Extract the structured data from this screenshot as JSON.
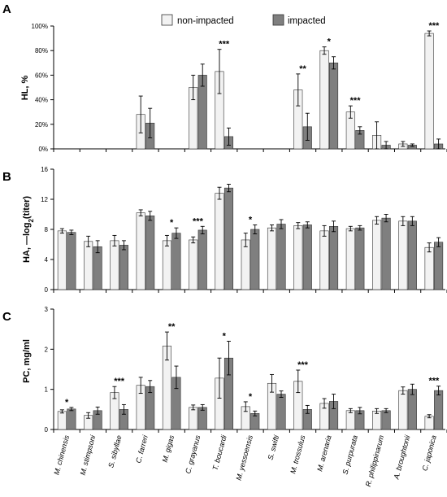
{
  "chart_data": [
    {
      "type": "bar",
      "panel": "A",
      "ylabel": "HL, %",
      "ylim": [
        0,
        100
      ],
      "yticks": [
        "0%",
        "20%",
        "40%",
        "60%",
        "80%",
        "100%"
      ],
      "ytick_values": [
        0,
        20,
        40,
        60,
        80,
        100
      ],
      "categories": [
        "M. chinensis",
        "M. stimpsoni",
        "S. sibyllae",
        "C. farreri",
        "M. gigas",
        "C. grayanus",
        "T. boucardi",
        "M. yessoensis",
        "S. swifti",
        "M. trossulus",
        "M. arenaria",
        "S. purpurata",
        "R. philippinarum",
        "A. broughtonii",
        "C. japonica"
      ],
      "series": [
        {
          "name": "non-impacted",
          "values": [
            0,
            0,
            0,
            28,
            0,
            50,
            63,
            0,
            0,
            48,
            80,
            30,
            11,
            4,
            94
          ],
          "errors": [
            0,
            0,
            0,
            15,
            0,
            10,
            18,
            0,
            0,
            13,
            3,
            5,
            11,
            2,
            2
          ]
        },
        {
          "name": "impacted",
          "values": [
            0,
            0,
            0,
            21,
            0,
            60,
            10,
            0,
            0,
            18,
            70,
            15,
            3,
            3,
            4
          ],
          "errors": [
            0,
            0,
            0,
            12,
            0,
            9,
            7,
            0,
            0,
            11,
            5,
            3,
            3,
            1,
            4
          ]
        }
      ],
      "significance": [
        "",
        "",
        "",
        "",
        "",
        "",
        "***",
        "",
        "",
        "**",
        "*",
        "***",
        "",
        "",
        "***"
      ]
    },
    {
      "type": "bar",
      "panel": "B",
      "ylabel_main": "HA, —log",
      "ylabel_sub": "2",
      "ylabel_tail": "(titer)",
      "ylim": [
        0,
        16
      ],
      "yticks": [
        "0",
        "4",
        "8",
        "12",
        "16"
      ],
      "ytick_values": [
        0,
        4,
        8,
        12,
        16
      ],
      "categories": [
        "M. chinensis",
        "M. stimpsoni",
        "S. sibyllae",
        "C. farreri",
        "M. gigas",
        "C. grayanus",
        "T. boucardi",
        "M. yessoensis",
        "S. swifti",
        "M. trossulus",
        "M. arenaria",
        "S. purpurata",
        "R. philippinarum",
        "A. broughtonii",
        "C. japonica"
      ],
      "series": [
        {
          "name": "non-impacted",
          "values": [
            7.8,
            6.4,
            6.5,
            10.2,
            6.5,
            6.6,
            12.8,
            6.6,
            8.2,
            8.5,
            7.8,
            8.1,
            9.2,
            9.1,
            5.6
          ],
          "errors": [
            0.3,
            0.7,
            0.7,
            0.4,
            0.7,
            0.4,
            0.8,
            0.9,
            0.4,
            0.4,
            0.7,
            0.3,
            0.5,
            0.6,
            0.6
          ]
        },
        {
          "name": "impacted",
          "values": [
            7.6,
            5.7,
            5.9,
            9.8,
            7.5,
            7.9,
            13.5,
            8.0,
            8.7,
            8.6,
            8.4,
            8.2,
            9.5,
            9.1,
            6.3
          ],
          "errors": [
            0.3,
            0.8,
            0.6,
            0.6,
            0.7,
            0.5,
            0.5,
            0.6,
            0.6,
            0.4,
            0.7,
            0.3,
            0.5,
            0.6,
            0.6
          ]
        }
      ],
      "significance": [
        "",
        "",
        "",
        "",
        "*",
        "***",
        "",
        "*",
        "",
        "",
        "",
        "",
        "",
        "",
        ""
      ]
    },
    {
      "type": "bar",
      "panel": "C",
      "ylabel": "PC, mg/ml",
      "ylim": [
        0,
        3
      ],
      "yticks": [
        "0",
        "1",
        "2",
        "3"
      ],
      "ytick_values": [
        0,
        1,
        2,
        3
      ],
      "categories": [
        "M. chinensis",
        "M. stimpsoni",
        "S. sibyllae",
        "C. farreri",
        "M. gigas",
        "C. grayanus",
        "T. boucardi",
        "M. yessoensis",
        "S. swifti",
        "M. trossulus",
        "M. arenaria",
        "S. purpurata",
        "R. philippinarum",
        "A. broughtonii",
        "C. japonica"
      ],
      "series": [
        {
          "name": "non-impacted",
          "values": [
            0.45,
            0.35,
            0.92,
            1.1,
            2.08,
            0.55,
            1.28,
            0.57,
            1.15,
            1.2,
            0.65,
            0.47,
            0.46,
            0.97,
            0.33
          ],
          "errors": [
            0.04,
            0.07,
            0.15,
            0.2,
            0.35,
            0.06,
            0.5,
            0.12,
            0.22,
            0.28,
            0.12,
            0.05,
            0.06,
            0.09,
            0.04
          ]
        },
        {
          "name": "impacted",
          "values": [
            0.51,
            0.47,
            0.5,
            1.07,
            1.3,
            0.55,
            1.78,
            0.4,
            0.88,
            0.5,
            0.7,
            0.47,
            0.47,
            1.0,
            0.97
          ],
          "errors": [
            0.04,
            0.09,
            0.12,
            0.15,
            0.28,
            0.07,
            0.42,
            0.06,
            0.08,
            0.1,
            0.18,
            0.08,
            0.05,
            0.13,
            0.11
          ]
        }
      ],
      "significance": [
        "*",
        "",
        "***",
        "",
        "**",
        "",
        "*",
        "*",
        "",
        "***",
        "",
        "",
        "",
        "",
        "***"
      ]
    }
  ],
  "legend": {
    "placement": "top-center",
    "items": [
      {
        "label": "non-impacted",
        "color": "#f2f2f2"
      },
      {
        "label": "impacted",
        "color": "#7f7f7f"
      }
    ]
  },
  "colors": {
    "non_impacted": "#f2f2f2",
    "impacted": "#7f7f7f",
    "axis": "#000000"
  }
}
